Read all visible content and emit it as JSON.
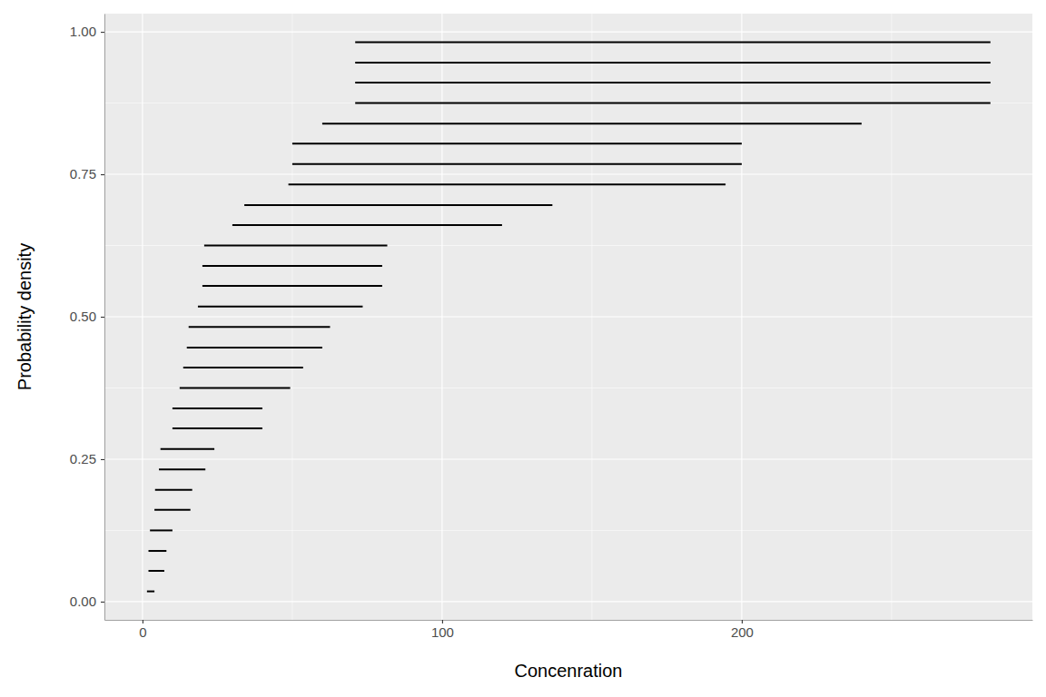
{
  "chart_data": {
    "type": "interval",
    "x_label": "Concenration",
    "y_label": "Probability density",
    "y": [
      0.018,
      0.054,
      0.089,
      0.125,
      0.161,
      0.196,
      0.232,
      0.268,
      0.304,
      0.339,
      0.375,
      0.411,
      0.446,
      0.482,
      0.518,
      0.554,
      0.589,
      0.625,
      0.661,
      0.696,
      0.732,
      0.768,
      0.804,
      0.839,
      0.875,
      0.911,
      0.946,
      0.982
    ],
    "xmin": [
      1.5,
      2,
      2,
      2.5,
      4,
      4.2,
      5.5,
      6,
      10,
      10,
      12.4,
      13.6,
      14.8,
      15.4,
      18.5,
      20,
      20,
      20.6,
      30,
      34,
      48.7,
      50,
      50,
      60,
      71,
      71,
      71,
      71
    ],
    "xmax": [
      4,
      7.3,
      8,
      10,
      16,
      16.6,
      21,
      24,
      40,
      40,
      49.3,
      53.6,
      60,
      62.6,
      73.5,
      80,
      80,
      81.7,
      120,
      136.8,
      194.6,
      200,
      200,
      240,
      283,
      283,
      283,
      283
    ],
    "color": "#000000",
    "xlim": [
      -12.7,
      297
    ],
    "ylim": [
      -0.032,
      1.032
    ],
    "xticks": [
      0,
      100,
      200
    ],
    "yticks": [
      {
        "value": 0,
        "label": "0.00"
      },
      {
        "value": 0.25,
        "label": "0.25"
      },
      {
        "value": 0.5,
        "label": "0.50"
      },
      {
        "value": 0.75,
        "label": "0.75"
      },
      {
        "value": 1,
        "label": "1.00"
      }
    ],
    "grid": true
  }
}
